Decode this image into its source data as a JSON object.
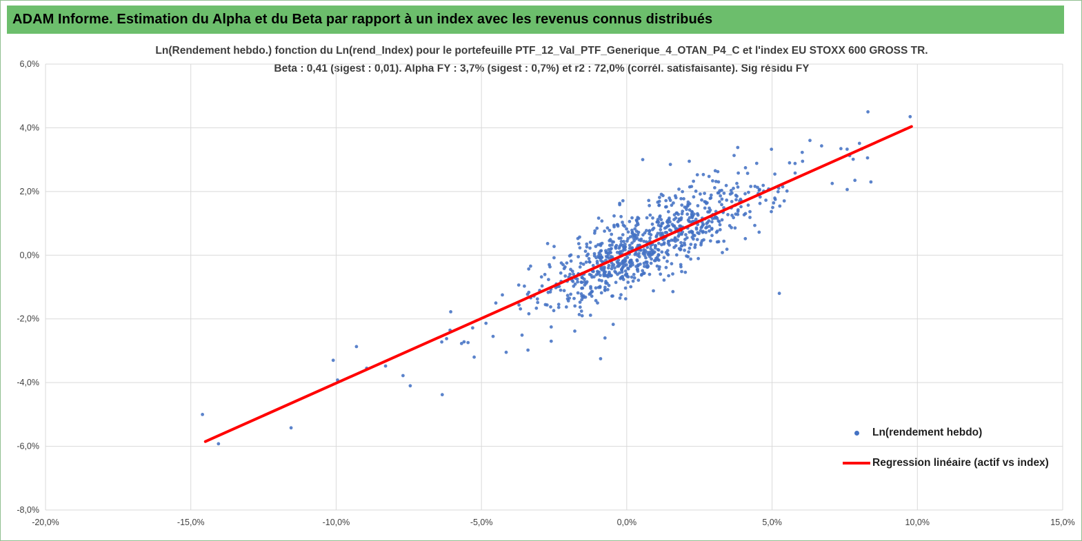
{
  "header": {
    "title": "ADAM Informe. Estimation du Alpha et du Beta par rapport à un index avec les revenus connus distribués"
  },
  "chart_data": {
    "type": "scatter",
    "title_line1": "Ln(Rendement hebdo.) fonction du Ln(rend_Index) pour le portefeuille PTF_12_Val_PTF_Generique_4_OTAN_P4_C et l'index EU STOXX 600 GROSS TR.",
    "title_line2": "Beta : 0,41 (sigest : 0,01). Alpha FY : 3,7% (sigest : 0,7%) et r2 : 72,0% (corrél. satisfaisante). Sig résidu FY",
    "beta": 0.41,
    "beta_sigest": 0.01,
    "alpha_fy_pct": 3.7,
    "alpha_sigest_pct": 0.7,
    "r2_pct": 72.0,
    "x_range": [
      -20,
      15
    ],
    "y_range": [
      -8,
      6
    ],
    "grid": true,
    "x_ticks": [
      {
        "v": -20,
        "label": "-20,0%"
      },
      {
        "v": -15,
        "label": "-15,0%"
      },
      {
        "v": -10,
        "label": "-10,0%"
      },
      {
        "v": -5,
        "label": "-5,0%"
      },
      {
        "v": 0,
        "label": "0,0%"
      },
      {
        "v": 5,
        "label": "5,0%"
      },
      {
        "v": 10,
        "label": "10,0%"
      },
      {
        "v": 15,
        "label": "15,0%"
      }
    ],
    "y_ticks": [
      {
        "v": 6,
        "label": "6,0%"
      },
      {
        "v": 4,
        "label": "4,0%"
      },
      {
        "v": 2,
        "label": "2,0%"
      },
      {
        "v": 0,
        "label": "0,0%"
      },
      {
        "v": -2,
        "label": "-2,0%"
      },
      {
        "v": -4,
        "label": "-4,0%"
      },
      {
        "v": -6,
        "label": "-6,0%"
      },
      {
        "v": -8,
        "label": "-8,0%"
      }
    ],
    "point_color": "#4472C4",
    "line_color": "#FF0000",
    "grid_color": "#D9D9D9",
    "regression_line": {
      "x1": -14.5,
      "y1": -5.85,
      "x2": 9.8,
      "y2": 4.04
    },
    "mean_point": {
      "x": 1.85,
      "y": 0.8,
      "color": "#FF0000"
    },
    "outlier_points": [
      [
        -14.6,
        -5.0
      ],
      [
        -14.05,
        -5.92
      ],
      [
        -11.55,
        -5.42
      ],
      [
        -10.1,
        -3.3
      ],
      [
        -9.95,
        -3.92
      ],
      [
        -9.3,
        -2.87
      ],
      [
        -8.95,
        -3.55
      ],
      [
        -8.3,
        -3.48
      ],
      [
        -7.7,
        -3.78
      ],
      [
        -7.45,
        -4.1
      ],
      [
        -6.35,
        -4.38
      ],
      [
        -6.2,
        -2.62
      ],
      [
        -5.6,
        -2.72
      ],
      [
        -5.25,
        -3.2
      ],
      [
        -4.6,
        -2.55
      ],
      [
        -4.15,
        -3.05
      ],
      [
        -3.4,
        -2.98
      ],
      [
        -2.6,
        -2.7
      ],
      [
        -0.9,
        -3.25
      ],
      [
        -0.75,
        -2.6
      ],
      [
        5.25,
        -1.2
      ],
      [
        0.55,
        3.0
      ],
      [
        1.5,
        2.85
      ],
      [
        2.15,
        2.95
      ],
      [
        5.6,
        2.9
      ],
      [
        6.05,
        2.95
      ],
      [
        7.85,
        2.35
      ],
      [
        8.4,
        2.3
      ],
      [
        8.3,
        4.5
      ],
      [
        9.75,
        4.35
      ]
    ],
    "cluster": {
      "count": 880,
      "seed": 42,
      "x_mean": 0.8,
      "x_sd": 1.9,
      "tail_fraction": 0.14,
      "tail_sd": 3.4,
      "beta": 0.407,
      "intercept": 0.05,
      "noise_sd": 0.62
    },
    "legend": [
      {
        "label": "Ln(rendement hebdo)",
        "marker": "dot",
        "color": "#4472C4"
      },
      {
        "label": "Regression linéaire (actif vs index)",
        "marker": "line",
        "color": "#FF0000"
      }
    ],
    "legend_position": "bottom-right-inside"
  }
}
